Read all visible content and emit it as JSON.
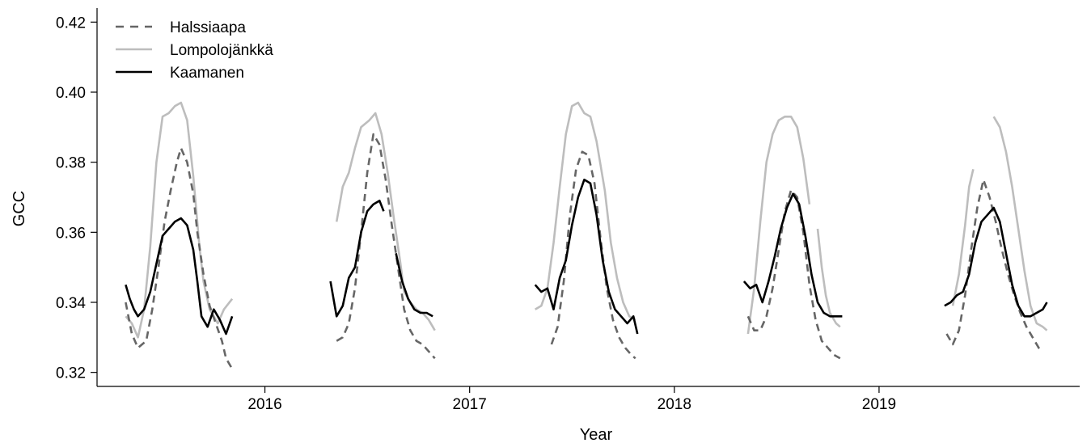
{
  "chart_data": {
    "type": "line",
    "xlabel": "Year",
    "ylabel": "GCC",
    "xlim": [
      2015.18,
      2019.98
    ],
    "ylim": [
      0.316,
      0.424
    ],
    "x_ticks": [
      2016,
      2017,
      2018,
      2019
    ],
    "x_tick_labels": [
      "2016",
      "2017",
      "2018",
      "2019"
    ],
    "y_ticks": [
      0.32,
      0.34,
      0.36,
      0.38,
      0.4,
      0.42
    ],
    "y_tick_labels": [
      "0.32",
      "0.34",
      "0.36",
      "0.38",
      "0.40",
      "0.42"
    ],
    "legend_position": "top-left",
    "grid": false,
    "series": [
      {
        "name": "Lompolojänkkä",
        "color": "#bdbdbd",
        "dash": "solid",
        "segments": [
          [
            [
              2015.32,
              0.336
            ],
            [
              2015.35,
              0.334
            ],
            [
              2015.38,
              0.33
            ],
            [
              2015.41,
              0.338
            ],
            [
              2015.44,
              0.356
            ],
            [
              2015.47,
              0.38
            ],
            [
              2015.5,
              0.393
            ],
            [
              2015.53,
              0.394
            ],
            [
              2015.56,
              0.396
            ],
            [
              2015.59,
              0.397
            ],
            [
              2015.62,
              0.392
            ],
            [
              2015.65,
              0.376
            ],
            [
              2015.68,
              0.356
            ],
            [
              2015.7,
              0.346
            ],
            [
              2015.73,
              0.338
            ],
            [
              2015.77,
              0.334
            ],
            [
              2015.8,
              0.338
            ],
            [
              2015.84,
              0.341
            ]
          ],
          [
            [
              2016.35,
              0.363
            ],
            [
              2016.38,
              0.373
            ],
            [
              2016.41,
              0.377
            ],
            [
              2016.44,
              0.384
            ],
            [
              2016.47,
              0.39
            ],
            [
              2016.51,
              0.392
            ],
            [
              2016.54,
              0.394
            ],
            [
              2016.57,
              0.388
            ],
            [
              2016.6,
              0.377
            ],
            [
              2016.63,
              0.364
            ],
            [
              2016.66,
              0.352
            ],
            [
              2016.68,
              0.343
            ],
            [
              2016.71,
              0.34
            ],
            [
              2016.74,
              0.338
            ],
            [
              2016.77,
              0.337
            ],
            [
              2016.8,
              0.335
            ],
            [
              2016.83,
              0.332
            ]
          ],
          [
            [
              2017.32,
              0.338
            ],
            [
              2017.35,
              0.339
            ],
            [
              2017.38,
              0.344
            ],
            [
              2017.41,
              0.357
            ],
            [
              2017.44,
              0.373
            ],
            [
              2017.47,
              0.388
            ],
            [
              2017.5,
              0.396
            ],
            [
              2017.53,
              0.397
            ],
            [
              2017.56,
              0.394
            ],
            [
              2017.59,
              0.393
            ],
            [
              2017.62,
              0.386
            ],
            [
              2017.66,
              0.372
            ],
            [
              2017.69,
              0.357
            ],
            [
              2017.72,
              0.347
            ],
            [
              2017.75,
              0.34
            ],
            [
              2017.78,
              0.336
            ],
            [
              2017.81,
              0.335
            ]
          ],
          [
            [
              2018.36,
              0.331
            ],
            [
              2018.39,
              0.344
            ],
            [
              2018.42,
              0.363
            ],
            [
              2018.45,
              0.38
            ],
            [
              2018.48,
              0.388
            ],
            [
              2018.51,
              0.392
            ],
            [
              2018.54,
              0.393
            ],
            [
              2018.57,
              0.393
            ],
            [
              2018.6,
              0.39
            ],
            [
              2018.63,
              0.381
            ],
            [
              2018.66,
              0.368
            ]
          ],
          [
            [
              2018.7,
              0.361
            ],
            [
              2018.72,
              0.35
            ],
            [
              2018.74,
              0.342
            ],
            [
              2018.76,
              0.337
            ],
            [
              2018.79,
              0.334
            ],
            [
              2018.81,
              0.333
            ]
          ],
          [
            [
              2019.36,
              0.339
            ],
            [
              2019.39,
              0.348
            ],
            [
              2019.42,
              0.362
            ],
            [
              2019.44,
              0.373
            ],
            [
              2019.46,
              0.378
            ]
          ],
          [
            [
              2019.56,
              0.393
            ],
            [
              2019.59,
              0.39
            ],
            [
              2019.62,
              0.383
            ],
            [
              2019.65,
              0.373
            ],
            [
              2019.68,
              0.361
            ],
            [
              2019.71,
              0.349
            ],
            [
              2019.74,
              0.339
            ],
            [
              2019.77,
              0.334
            ],
            [
              2019.8,
              0.333
            ],
            [
              2019.82,
              0.332
            ]
          ]
        ]
      },
      {
        "name": "Halssiaapa",
        "color": "#666666",
        "dash": "dashed",
        "segments": [
          [
            [
              2015.32,
              0.34
            ],
            [
              2015.35,
              0.331
            ],
            [
              2015.38,
              0.327
            ],
            [
              2015.42,
              0.329
            ],
            [
              2015.45,
              0.338
            ],
            [
              2015.48,
              0.35
            ],
            [
              2015.51,
              0.363
            ],
            [
              2015.54,
              0.372
            ],
            [
              2015.57,
              0.38
            ],
            [
              2015.59,
              0.384
            ],
            [
              2015.62,
              0.38
            ],
            [
              2015.65,
              0.371
            ],
            [
              2015.67,
              0.36
            ],
            [
              2015.7,
              0.348
            ],
            [
              2015.73,
              0.339
            ],
            [
              2015.76,
              0.334
            ],
            [
              2015.79,
              0.329
            ],
            [
              2015.81,
              0.324
            ],
            [
              2015.84,
              0.321
            ]
          ],
          [
            [
              2016.35,
              0.329
            ],
            [
              2016.38,
              0.33
            ],
            [
              2016.41,
              0.334
            ],
            [
              2016.44,
              0.344
            ],
            [
              2016.47,
              0.36
            ],
            [
              2016.5,
              0.377
            ],
            [
              2016.53,
              0.388
            ],
            [
              2016.56,
              0.385
            ],
            [
              2016.59,
              0.375
            ],
            [
              2016.62,
              0.362
            ],
            [
              2016.65,
              0.35
            ],
            [
              2016.68,
              0.338
            ],
            [
              2016.71,
              0.332
            ],
            [
              2016.74,
              0.329
            ],
            [
              2016.77,
              0.328
            ],
            [
              2016.8,
              0.326
            ],
            [
              2016.83,
              0.324
            ]
          ],
          [
            [
              2017.4,
              0.328
            ],
            [
              2017.43,
              0.333
            ],
            [
              2017.46,
              0.346
            ],
            [
              2017.49,
              0.365
            ],
            [
              2017.52,
              0.378
            ],
            [
              2017.55,
              0.383
            ],
            [
              2017.58,
              0.382
            ],
            [
              2017.61,
              0.374
            ],
            [
              2017.64,
              0.358
            ],
            [
              2017.67,
              0.344
            ],
            [
              2017.7,
              0.335
            ],
            [
              2017.73,
              0.33
            ],
            [
              2017.76,
              0.327
            ],
            [
              2017.79,
              0.325
            ],
            [
              2017.81,
              0.324
            ]
          ],
          [
            [
              2018.36,
              0.336
            ],
            [
              2018.39,
              0.332
            ],
            [
              2018.42,
              0.332
            ],
            [
              2018.45,
              0.336
            ],
            [
              2018.48,
              0.344
            ],
            [
              2018.51,
              0.355
            ],
            [
              2018.54,
              0.366
            ],
            [
              2018.57,
              0.372
            ],
            [
              2018.6,
              0.37
            ],
            [
              2018.63,
              0.36
            ],
            [
              2018.66,
              0.345
            ],
            [
              2018.69,
              0.335
            ],
            [
              2018.72,
              0.329
            ],
            [
              2018.75,
              0.327
            ],
            [
              2018.78,
              0.325
            ],
            [
              2018.81,
              0.324
            ]
          ],
          [
            [
              2019.33,
              0.331
            ],
            [
              2019.36,
              0.328
            ],
            [
              2019.39,
              0.332
            ],
            [
              2019.42,
              0.342
            ],
            [
              2019.45,
              0.355
            ],
            [
              2019.48,
              0.367
            ],
            [
              2019.51,
              0.375
            ],
            [
              2019.54,
              0.37
            ],
            [
              2019.57,
              0.363
            ],
            [
              2019.6,
              0.355
            ],
            [
              2019.63,
              0.348
            ],
            [
              2019.66,
              0.342
            ],
            [
              2019.69,
              0.337
            ],
            [
              2019.72,
              0.333
            ],
            [
              2019.75,
              0.33
            ],
            [
              2019.78,
              0.327
            ],
            [
              2019.8,
              0.326
            ]
          ]
        ]
      },
      {
        "name": "Kaamanen",
        "color": "#000000",
        "dash": "solid",
        "segments": [
          [
            [
              2015.32,
              0.345
            ],
            [
              2015.34,
              0.341
            ],
            [
              2015.36,
              0.338
            ],
            [
              2015.38,
              0.336
            ],
            [
              2015.41,
              0.338
            ],
            [
              2015.44,
              0.343
            ],
            [
              2015.47,
              0.351
            ],
            [
              2015.5,
              0.359
            ],
            [
              2015.53,
              0.361
            ],
            [
              2015.56,
              0.363
            ],
            [
              2015.59,
              0.364
            ],
            [
              2015.62,
              0.362
            ],
            [
              2015.65,
              0.355
            ],
            [
              2015.67,
              0.346
            ],
            [
              2015.69,
              0.336
            ],
            [
              2015.72,
              0.333
            ],
            [
              2015.75,
              0.338
            ],
            [
              2015.78,
              0.335
            ],
            [
              2015.81,
              0.331
            ],
            [
              2015.84,
              0.336
            ]
          ],
          [
            [
              2016.32,
              0.346
            ],
            [
              2016.35,
              0.336
            ],
            [
              2016.38,
              0.339
            ],
            [
              2016.41,
              0.347
            ],
            [
              2016.44,
              0.35
            ],
            [
              2016.47,
              0.36
            ],
            [
              2016.5,
              0.366
            ],
            [
              2016.53,
              0.368
            ],
            [
              2016.56,
              0.369
            ],
            [
              2016.58,
              0.366
            ]
          ],
          [
            [
              2016.64,
              0.354
            ],
            [
              2016.67,
              0.346
            ],
            [
              2016.7,
              0.341
            ],
            [
              2016.73,
              0.338
            ],
            [
              2016.76,
              0.337
            ],
            [
              2016.79,
              0.337
            ],
            [
              2016.82,
              0.336
            ]
          ],
          [
            [
              2017.32,
              0.345
            ],
            [
              2017.35,
              0.343
            ],
            [
              2017.38,
              0.344
            ],
            [
              2017.41,
              0.338
            ],
            [
              2017.44,
              0.347
            ],
            [
              2017.47,
              0.352
            ],
            [
              2017.5,
              0.362
            ],
            [
              2017.53,
              0.37
            ],
            [
              2017.56,
              0.375
            ],
            [
              2017.59,
              0.374
            ],
            [
              2017.62,
              0.365
            ],
            [
              2017.65,
              0.352
            ],
            [
              2017.68,
              0.343
            ],
            [
              2017.71,
              0.338
            ],
            [
              2017.74,
              0.336
            ],
            [
              2017.77,
              0.334
            ],
            [
              2017.8,
              0.336
            ],
            [
              2017.82,
              0.331
            ]
          ],
          [
            [
              2018.34,
              0.346
            ],
            [
              2018.37,
              0.344
            ],
            [
              2018.4,
              0.345
            ],
            [
              2018.43,
              0.34
            ],
            [
              2018.46,
              0.346
            ],
            [
              2018.49,
              0.353
            ],
            [
              2018.52,
              0.361
            ],
            [
              2018.55,
              0.367
            ],
            [
              2018.58,
              0.371
            ],
            [
              2018.61,
              0.368
            ],
            [
              2018.64,
              0.359
            ],
            [
              2018.67,
              0.348
            ],
            [
              2018.7,
              0.34
            ],
            [
              2018.73,
              0.337
            ],
            [
              2018.76,
              0.336
            ],
            [
              2018.79,
              0.336
            ],
            [
              2018.82,
              0.336
            ]
          ],
          [
            [
              2019.32,
              0.339
            ],
            [
              2019.35,
              0.34
            ],
            [
              2019.38,
              0.342
            ],
            [
              2019.41,
              0.343
            ],
            [
              2019.44,
              0.348
            ],
            [
              2019.47,
              0.357
            ],
            [
              2019.5,
              0.363
            ],
            [
              2019.53,
              0.365
            ],
            [
              2019.56,
              0.367
            ],
            [
              2019.59,
              0.363
            ],
            [
              2019.62,
              0.354
            ],
            [
              2019.65,
              0.345
            ],
            [
              2019.68,
              0.339
            ],
            [
              2019.71,
              0.336
            ],
            [
              2019.74,
              0.336
            ],
            [
              2019.77,
              0.337
            ],
            [
              2019.8,
              0.338
            ],
            [
              2019.82,
              0.34
            ]
          ]
        ]
      }
    ]
  }
}
